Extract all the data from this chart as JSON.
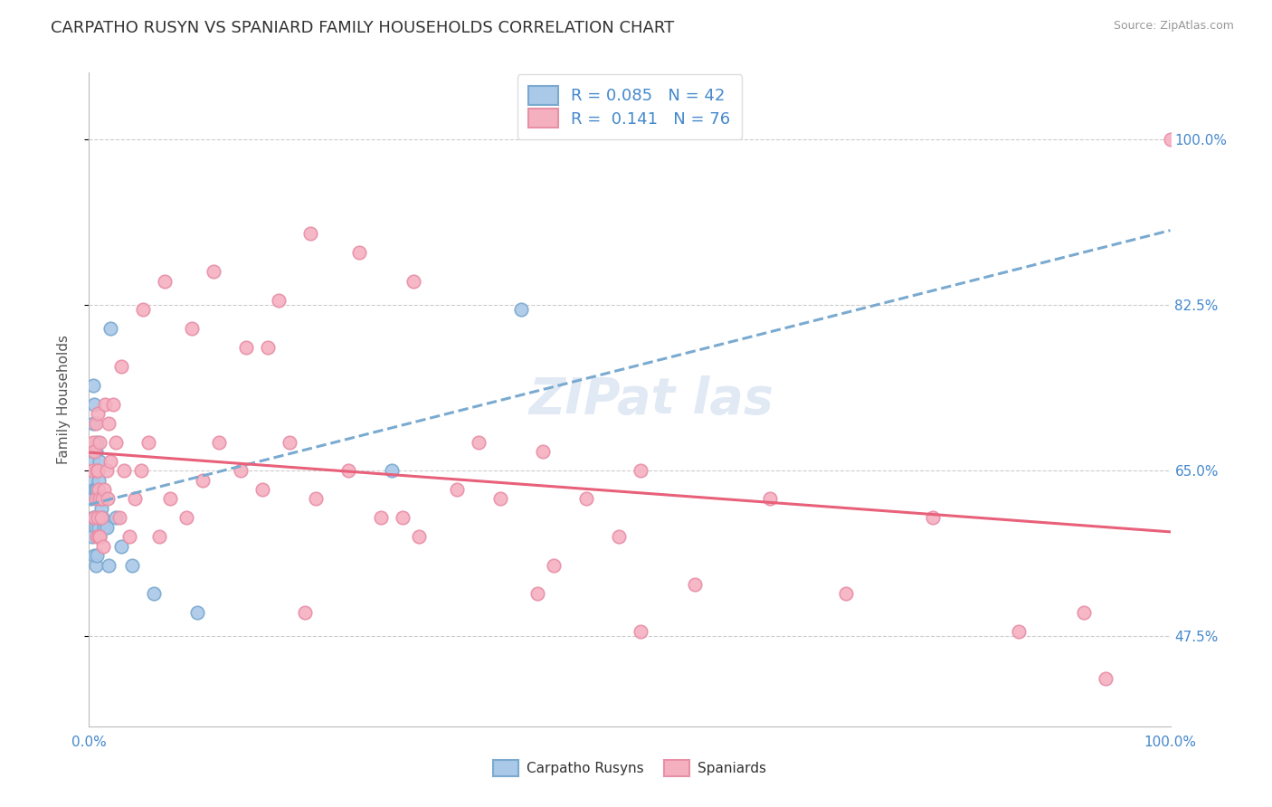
{
  "title": "CARPATHO RUSYN VS SPANIARD FAMILY HOUSEHOLDS CORRELATION CHART",
  "source_text": "Source: ZipAtlas.com",
  "ylabel": "Family Households",
  "xlim": [
    0.0,
    1.0
  ],
  "ylim": [
    0.38,
    1.07
  ],
  "yticks": [
    0.475,
    0.65,
    0.825,
    1.0
  ],
  "ytick_labels": [
    "47.5%",
    "65.0%",
    "82.5%",
    "100.0%"
  ],
  "xticks": [
    0.0,
    1.0
  ],
  "xtick_labels": [
    "0.0%",
    "100.0%"
  ],
  "blue_R": 0.085,
  "blue_N": 42,
  "pink_R": 0.141,
  "pink_N": 76,
  "blue_color": "#aac8e8",
  "pink_color": "#f5b0c0",
  "blue_edge_color": "#7aaad0",
  "pink_edge_color": "#e890a8",
  "blue_line_color": "#7aaad0",
  "pink_line_color": "#e8607a",
  "grid_color": "#cccccc",
  "background_color": "#ffffff",
  "title_fontsize": 13,
  "label_fontsize": 11,
  "tick_fontsize": 11,
  "legend_fontsize": 13,
  "blue_x": [
    0.002,
    0.003,
    0.003,
    0.004,
    0.004,
    0.004,
    0.004,
    0.005,
    0.005,
    0.005,
    0.005,
    0.005,
    0.006,
    0.006,
    0.006,
    0.006,
    0.007,
    0.007,
    0.007,
    0.007,
    0.008,
    0.008,
    0.008,
    0.009,
    0.009,
    0.01,
    0.01,
    0.01,
    0.011,
    0.012,
    0.013,
    0.014,
    0.016,
    0.018,
    0.02,
    0.025,
    0.03,
    0.04,
    0.06,
    0.1,
    0.28,
    0.4
  ],
  "blue_y": [
    0.62,
    0.58,
    0.64,
    0.6,
    0.66,
    0.7,
    0.74,
    0.56,
    0.6,
    0.63,
    0.67,
    0.72,
    0.55,
    0.59,
    0.63,
    0.67,
    0.56,
    0.6,
    0.63,
    0.68,
    0.58,
    0.62,
    0.65,
    0.59,
    0.64,
    0.58,
    0.62,
    0.66,
    0.61,
    0.6,
    0.62,
    0.59,
    0.59,
    0.55,
    0.8,
    0.6,
    0.57,
    0.55,
    0.52,
    0.5,
    0.65,
    0.82
  ],
  "pink_x": [
    0.003,
    0.004,
    0.005,
    0.005,
    0.006,
    0.006,
    0.007,
    0.007,
    0.008,
    0.008,
    0.008,
    0.009,
    0.009,
    0.01,
    0.01,
    0.01,
    0.011,
    0.012,
    0.013,
    0.014,
    0.015,
    0.016,
    0.017,
    0.018,
    0.02,
    0.022,
    0.025,
    0.028,
    0.032,
    0.037,
    0.042,
    0.048,
    0.055,
    0.065,
    0.075,
    0.09,
    0.105,
    0.12,
    0.14,
    0.16,
    0.185,
    0.21,
    0.24,
    0.27,
    0.305,
    0.34,
    0.38,
    0.42,
    0.46,
    0.51,
    0.03,
    0.05,
    0.07,
    0.095,
    0.115,
    0.145,
    0.175,
    0.205,
    0.25,
    0.3,
    0.36,
    0.43,
    0.49,
    0.56,
    0.63,
    0.7,
    0.78,
    0.86,
    0.94,
    1.0,
    0.165,
    0.2,
    0.29,
    0.415,
    0.51,
    0.92
  ],
  "pink_y": [
    0.65,
    0.68,
    0.6,
    0.67,
    0.62,
    0.7,
    0.58,
    0.65,
    0.6,
    0.65,
    0.71,
    0.58,
    0.63,
    0.58,
    0.62,
    0.68,
    0.6,
    0.62,
    0.57,
    0.63,
    0.72,
    0.65,
    0.62,
    0.7,
    0.66,
    0.72,
    0.68,
    0.6,
    0.65,
    0.58,
    0.62,
    0.65,
    0.68,
    0.58,
    0.62,
    0.6,
    0.64,
    0.68,
    0.65,
    0.63,
    0.68,
    0.62,
    0.65,
    0.6,
    0.58,
    0.63,
    0.62,
    0.67,
    0.62,
    0.65,
    0.76,
    0.82,
    0.85,
    0.8,
    0.86,
    0.78,
    0.83,
    0.9,
    0.88,
    0.85,
    0.68,
    0.55,
    0.58,
    0.53,
    0.62,
    0.52,
    0.6,
    0.48,
    0.43,
    1.0,
    0.78,
    0.5,
    0.6,
    0.52,
    0.48,
    0.5
  ]
}
